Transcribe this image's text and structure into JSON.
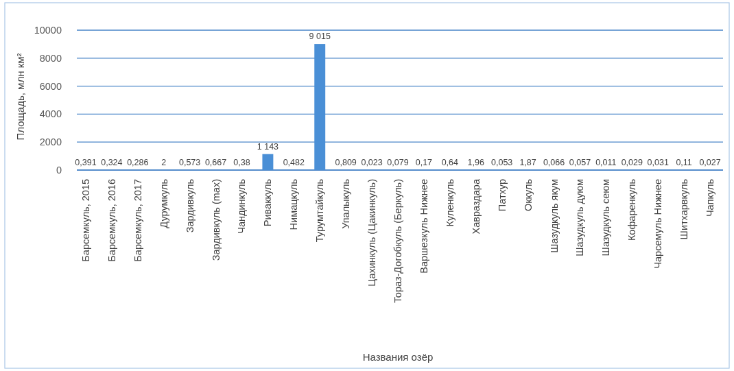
{
  "chart_data": {
    "type": "bar",
    "categories": [
      "Барсемкуль, 2015",
      "Барсемкуль, 2016",
      "Барсемкуль, 2017",
      "Дурумкуль",
      "Зардивкуль",
      "Зардивкуль (max)",
      "Чандинкуль",
      "Риваккуль",
      "Нимацкуль",
      "Турумтайкуль",
      "Упалыкуль",
      "Цахинкуль (Цакинкуль)",
      "Тораз-Догобкуль (Беркуль)",
      "Варшезкуль Нижнее",
      "Куленкуль",
      "Хавраздара",
      "Патхур",
      "Оккуль",
      "Шазудкуль якум",
      "Шазудкуль дуюм",
      "Шазудкуль сеюм",
      "Кофаренкуль",
      "Чарсемуль Нижнее",
      "Шитхарвкуль",
      "Чапкуль"
    ],
    "values": [
      0.391,
      0.324,
      0.286,
      2,
      0.573,
      0.667,
      0.38,
      1143,
      0.482,
      9015,
      0.809,
      0.023,
      0.079,
      0.17,
      0.64,
      1.96,
      0.053,
      1.87,
      0.066,
      0.057,
      0.011,
      0.029,
      0.031,
      0.11,
      0.027
    ],
    "value_labels": [
      "0,391",
      "0,324",
      "0,286",
      "2",
      "0,573",
      "0,667",
      "0,38",
      "1 143",
      "0,482",
      "9 015",
      "0,809",
      "0,023",
      "0,079",
      "0,17",
      "0,64",
      "1,96",
      "0,053",
      "1,87",
      "0,066",
      "0,057",
      "0,011",
      "0,029",
      "0,031",
      "0,11",
      "0,027"
    ],
    "color": "#4a8fd6",
    "xlabel": "Названия озёр",
    "ylabel": "Площадь, млн км²",
    "ylim": [
      0,
      10000
    ],
    "yticks": [
      0,
      2000,
      4000,
      6000,
      8000,
      10000
    ],
    "grid": "y"
  }
}
